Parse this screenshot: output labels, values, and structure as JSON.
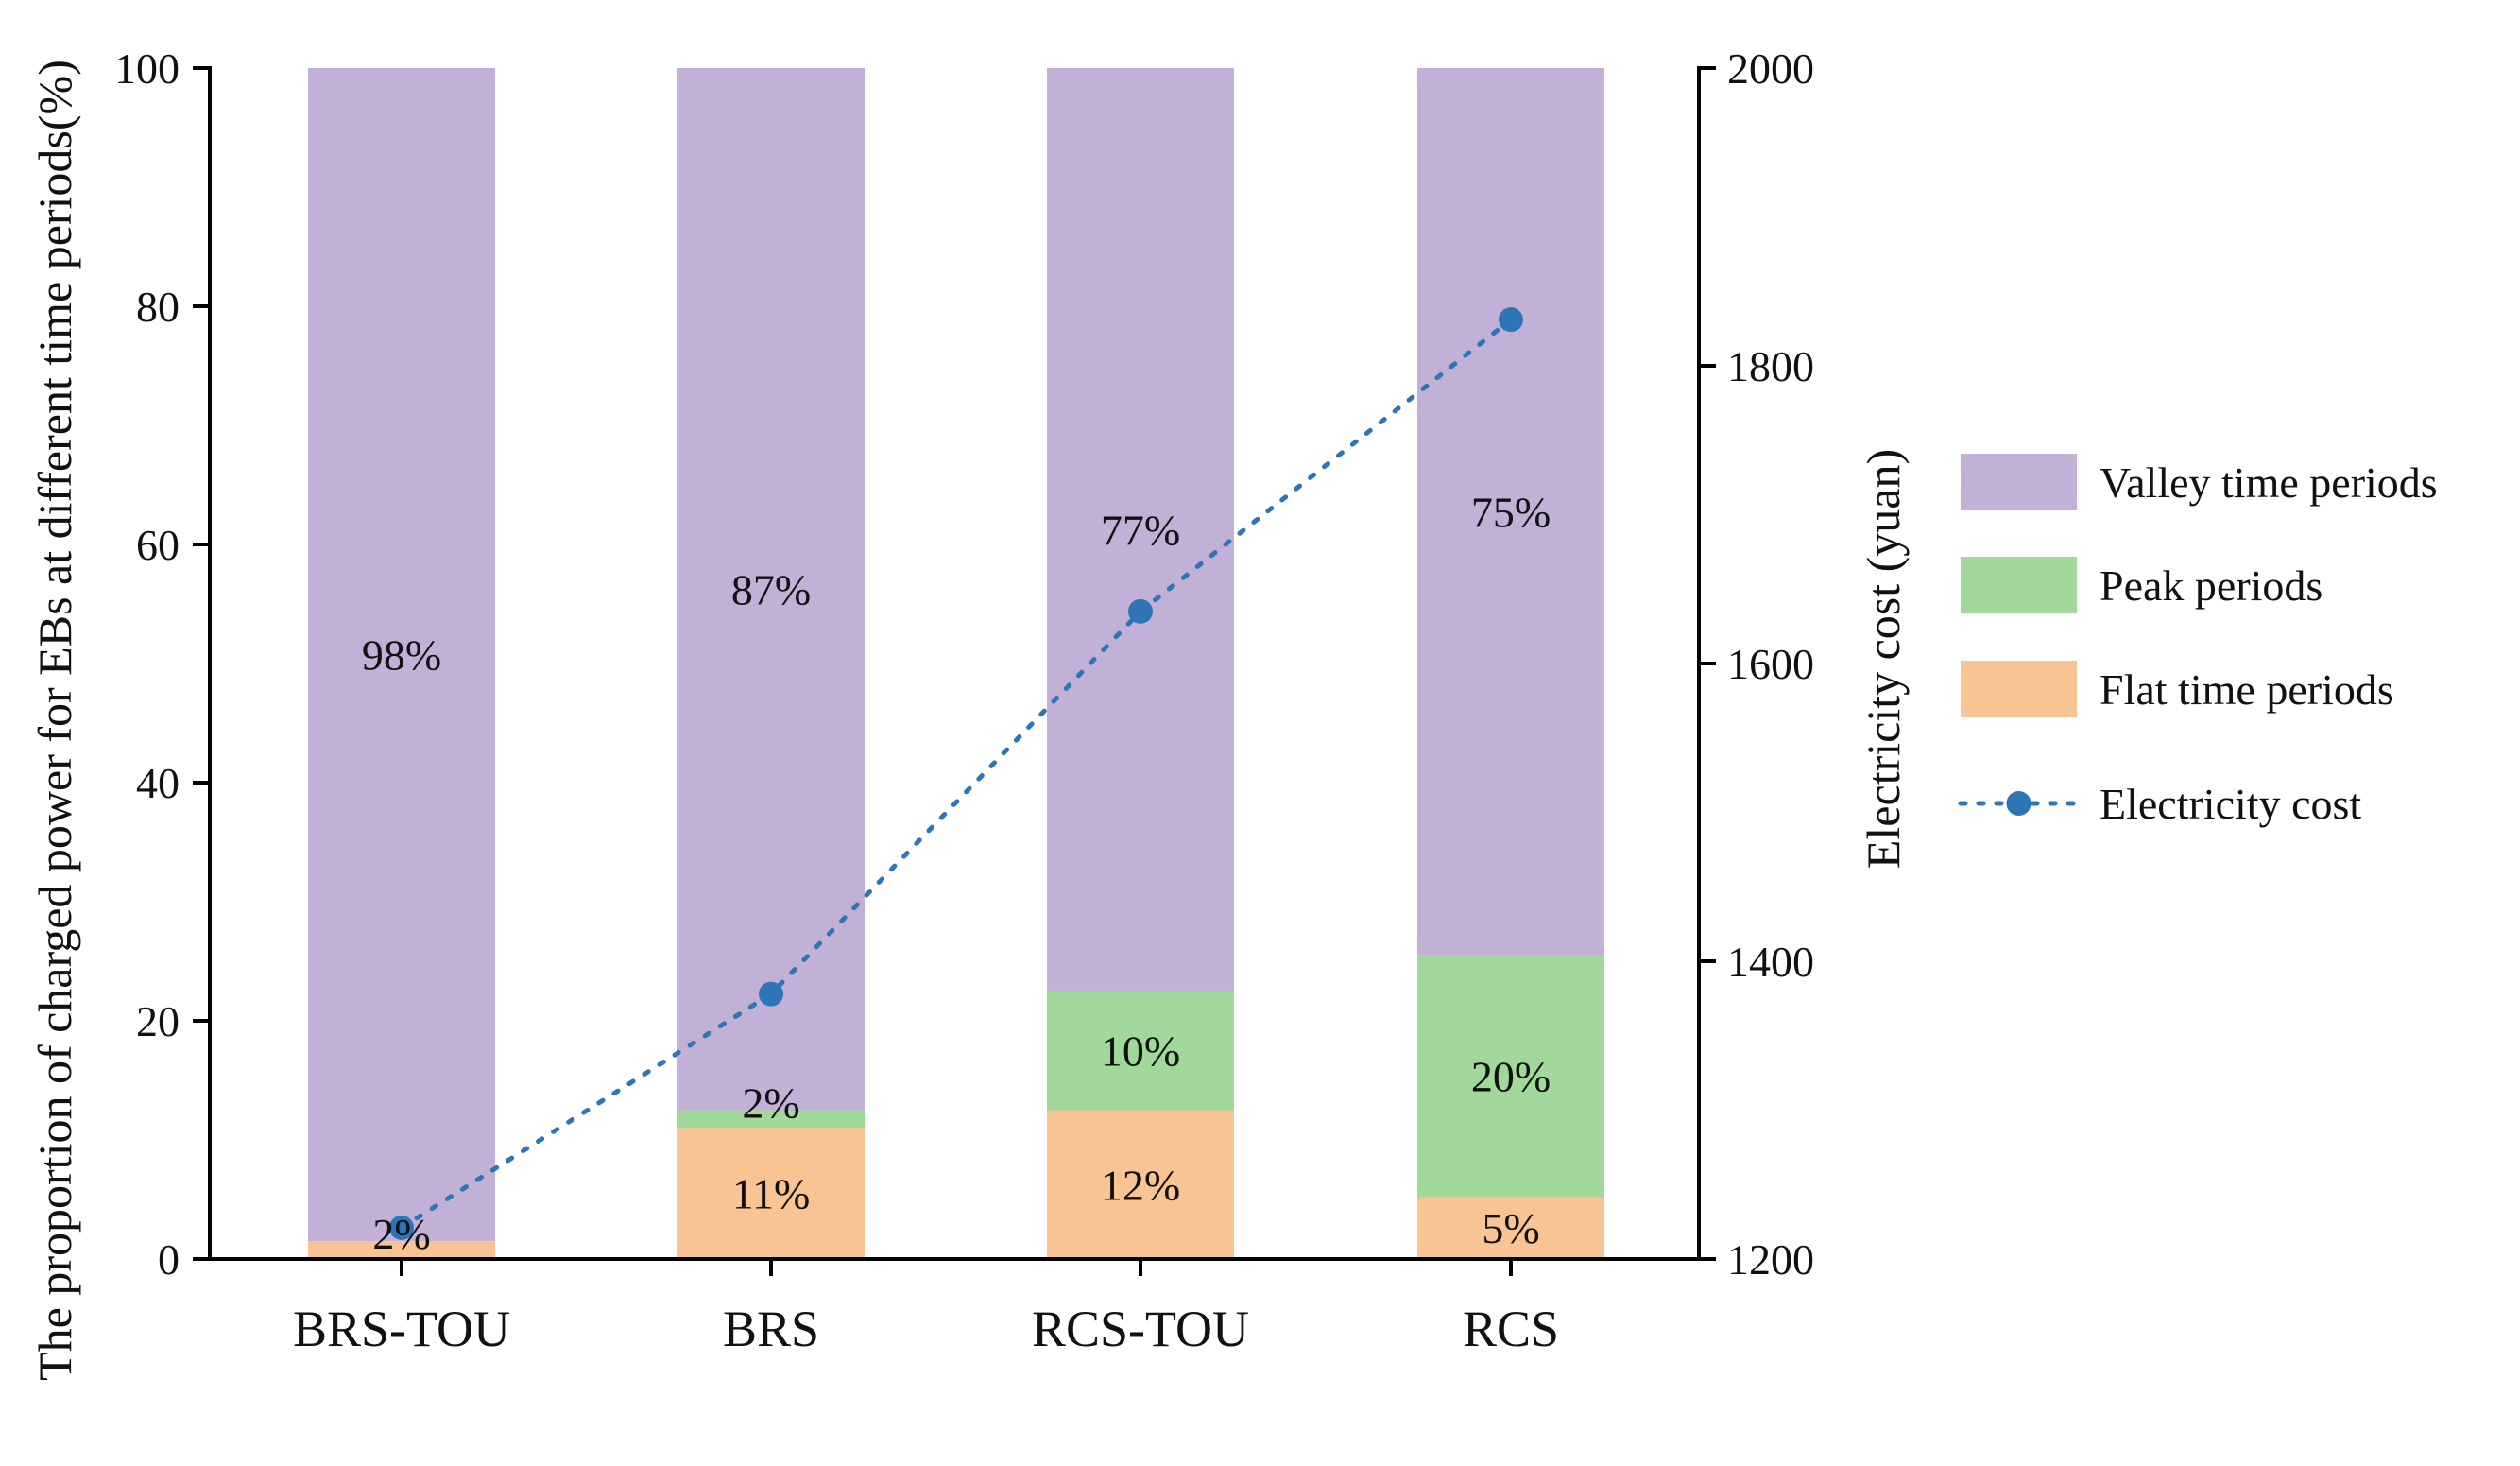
{
  "chart_data": {
    "type": "bar",
    "stacked": true,
    "secondary_type": "line",
    "categories": [
      "BRS-TOU",
      "BRS",
      "RCS-TOU",
      "RCS"
    ],
    "series": [
      {
        "name": "Flat time periods",
        "color": "#F9C493",
        "values": [
          1.5,
          11,
          12.5,
          5.2
        ],
        "labels": [
          "2%",
          "11%",
          "12%",
          "5%"
        ]
      },
      {
        "name": "Peak  periods",
        "color": "#A1D99B",
        "values": [
          0,
          1.5,
          10,
          20.3
        ],
        "labels": [
          "",
          "2%",
          "10%",
          "20%"
        ]
      },
      {
        "name": "Valley time periods",
        "color": "#C2B0D6",
        "values": [
          98.5,
          87.5,
          77.5,
          74.5
        ],
        "labels": [
          "98%",
          "87%",
          "77%",
          "75%"
        ]
      }
    ],
    "line_series": {
      "name": "Electricity cost",
      "color": "#2E75B6",
      "values": [
        1221,
        1378,
        1635,
        1831
      ]
    },
    "ylabel": "The proportion of charged power for EBs at different time periods(%)",
    "y2label": "Electricity cost (yuan)",
    "ylim": [
      0,
      100
    ],
    "y2lim": [
      1200,
      2000
    ],
    "yticks": [
      "0",
      "20",
      "40",
      "60",
      "80",
      "100"
    ],
    "y2ticks": [
      "1200",
      "1400",
      "1600",
      "1800",
      "2000"
    ],
    "legend_position": "right",
    "legend_order": [
      "Valley time periods",
      "Peak  periods",
      "Flat time periods",
      "Electricity cost"
    ]
  }
}
